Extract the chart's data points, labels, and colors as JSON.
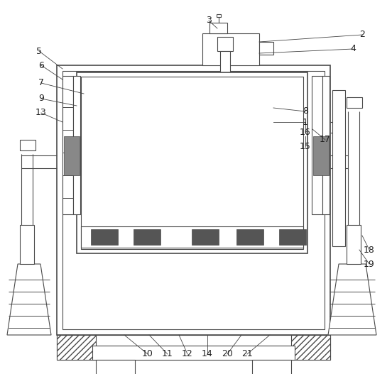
{
  "bg_color": "#ffffff",
  "line_color": "#4a4a4a",
  "figsize": [
    5.52,
    5.27
  ],
  "dpi": 100,
  "label_fs": 9,
  "label_color": "#222222"
}
